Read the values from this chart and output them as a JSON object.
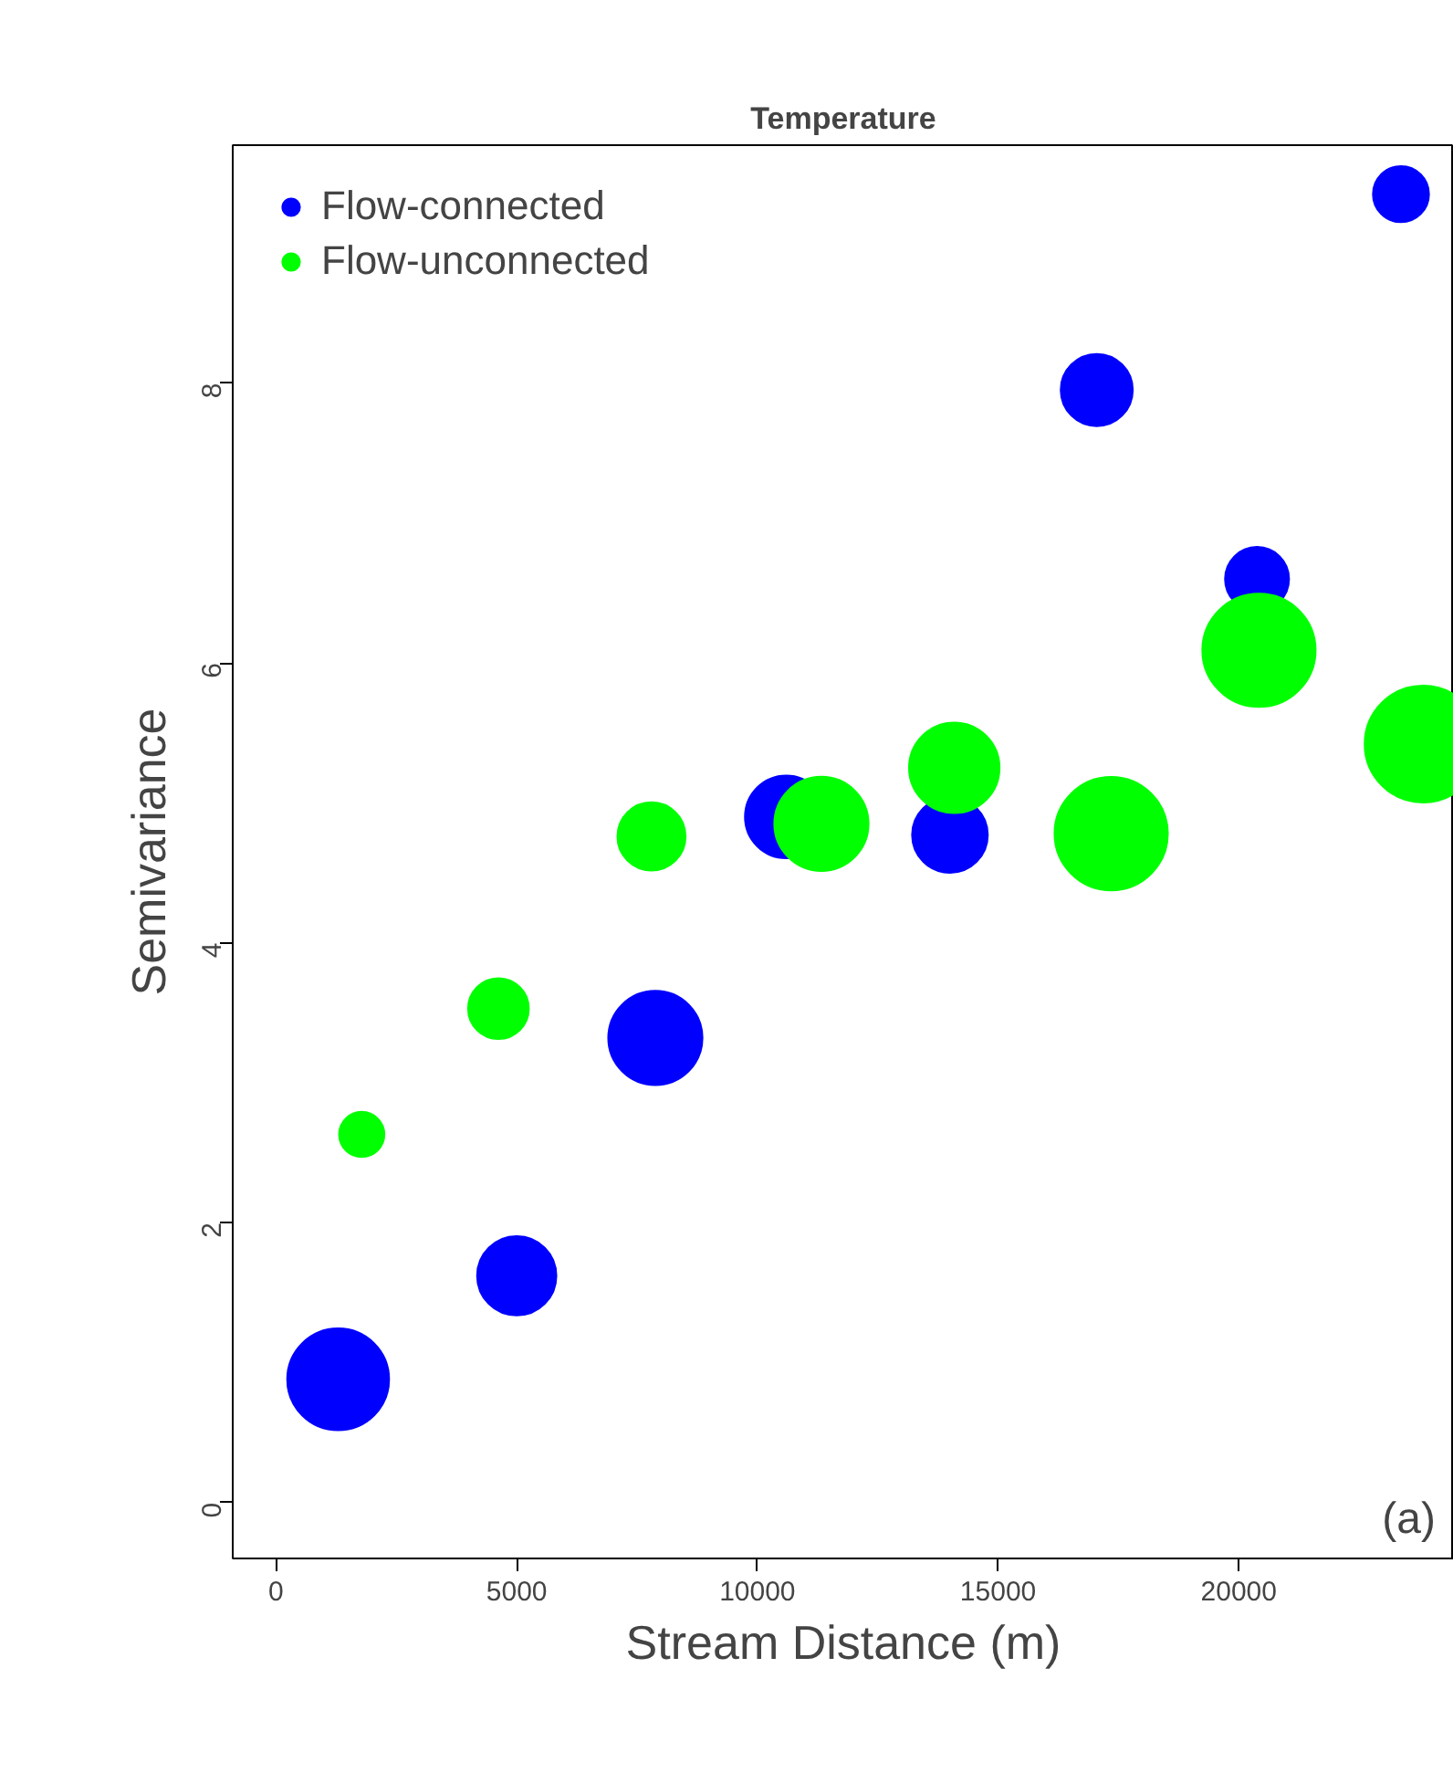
{
  "chart_data": {
    "type": "bubble",
    "title": "Temperature",
    "xlabel": "Stream Distance (m)",
    "ylabel": "Semivariance",
    "annotations": [
      "(a)"
    ],
    "xlim": [
      -900,
      24470
    ],
    "xticks": [
      0,
      5000,
      10000,
      15000,
      20000
    ],
    "ylim": [
      -0.4,
      9.7
    ],
    "yticks": [
      0,
      2,
      4,
      6,
      8
    ],
    "grid": false,
    "legend": "top left",
    "marker": "circle",
    "series": [
      {
        "name": "Flow-connected",
        "color": "#0000ff",
        "x": [
          1290,
          5000,
          7880,
          10600,
          14000,
          17050,
          20380,
          23370
        ],
        "values": [
          0.88,
          1.62,
          3.32,
          4.9,
          4.77,
          7.95,
          6.6,
          9.35
        ],
        "sizes": [
          0.76,
          0.46,
          0.65,
          0.5,
          0.42,
          0.38,
          0.3,
          0.23
        ]
      },
      {
        "name": "Flow-unconnected",
        "color": "#00ff00",
        "x": [
          1780,
          4620,
          7800,
          11330,
          14090,
          17350,
          20420,
          23830
        ],
        "values": [
          2.63,
          3.53,
          4.76,
          4.85,
          5.25,
          4.78,
          6.09,
          5.42
        ],
        "sizes": [
          0.15,
          0.27,
          0.34,
          0.65,
          0.6,
          0.94,
          0.94,
          1.0
        ]
      }
    ]
  }
}
